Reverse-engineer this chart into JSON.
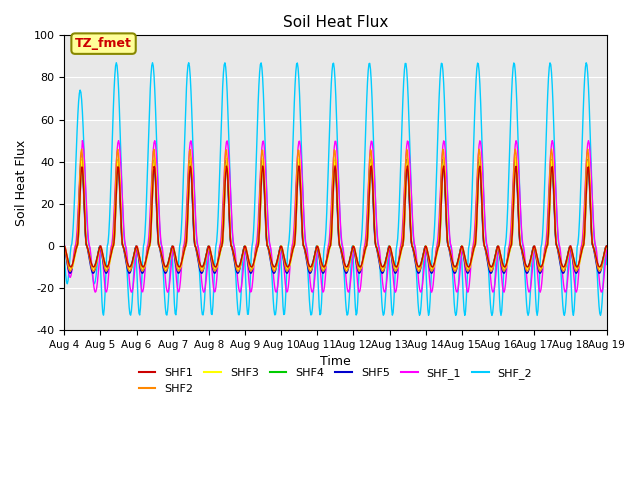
{
  "title": "Soil Heat Flux",
  "xlabel": "Time",
  "ylabel": "Soil Heat Flux",
  "ylim": [
    -40,
    100
  ],
  "yticks": [
    -40,
    -20,
    0,
    20,
    40,
    60,
    80,
    100
  ],
  "xtick_labels": [
    "Aug 4",
    "Aug 5",
    "Aug 6",
    "Aug 7",
    "Aug 8",
    "Aug 9",
    "Aug 10",
    "Aug 11",
    "Aug 12",
    "Aug 13",
    "Aug 14",
    "Aug 15",
    "Aug 16",
    "Aug 17",
    "Aug 18",
    "Aug 19"
  ],
  "series_colors": {
    "SHF1": "#cc0000",
    "SHF2": "#ff8800",
    "SHF3": "#ffff00",
    "SHF4": "#00cc00",
    "SHF5": "#0000cc",
    "SHF_1": "#ff00ff",
    "SHF_2": "#00ccff"
  },
  "annotation_text": "TZ_fmet",
  "annotation_color": "#cc0000",
  "annotation_bg": "#ffff99",
  "annotation_border": "#888800",
  "ax_bg": "#e8e8e8",
  "grid_color": "#ffffff"
}
